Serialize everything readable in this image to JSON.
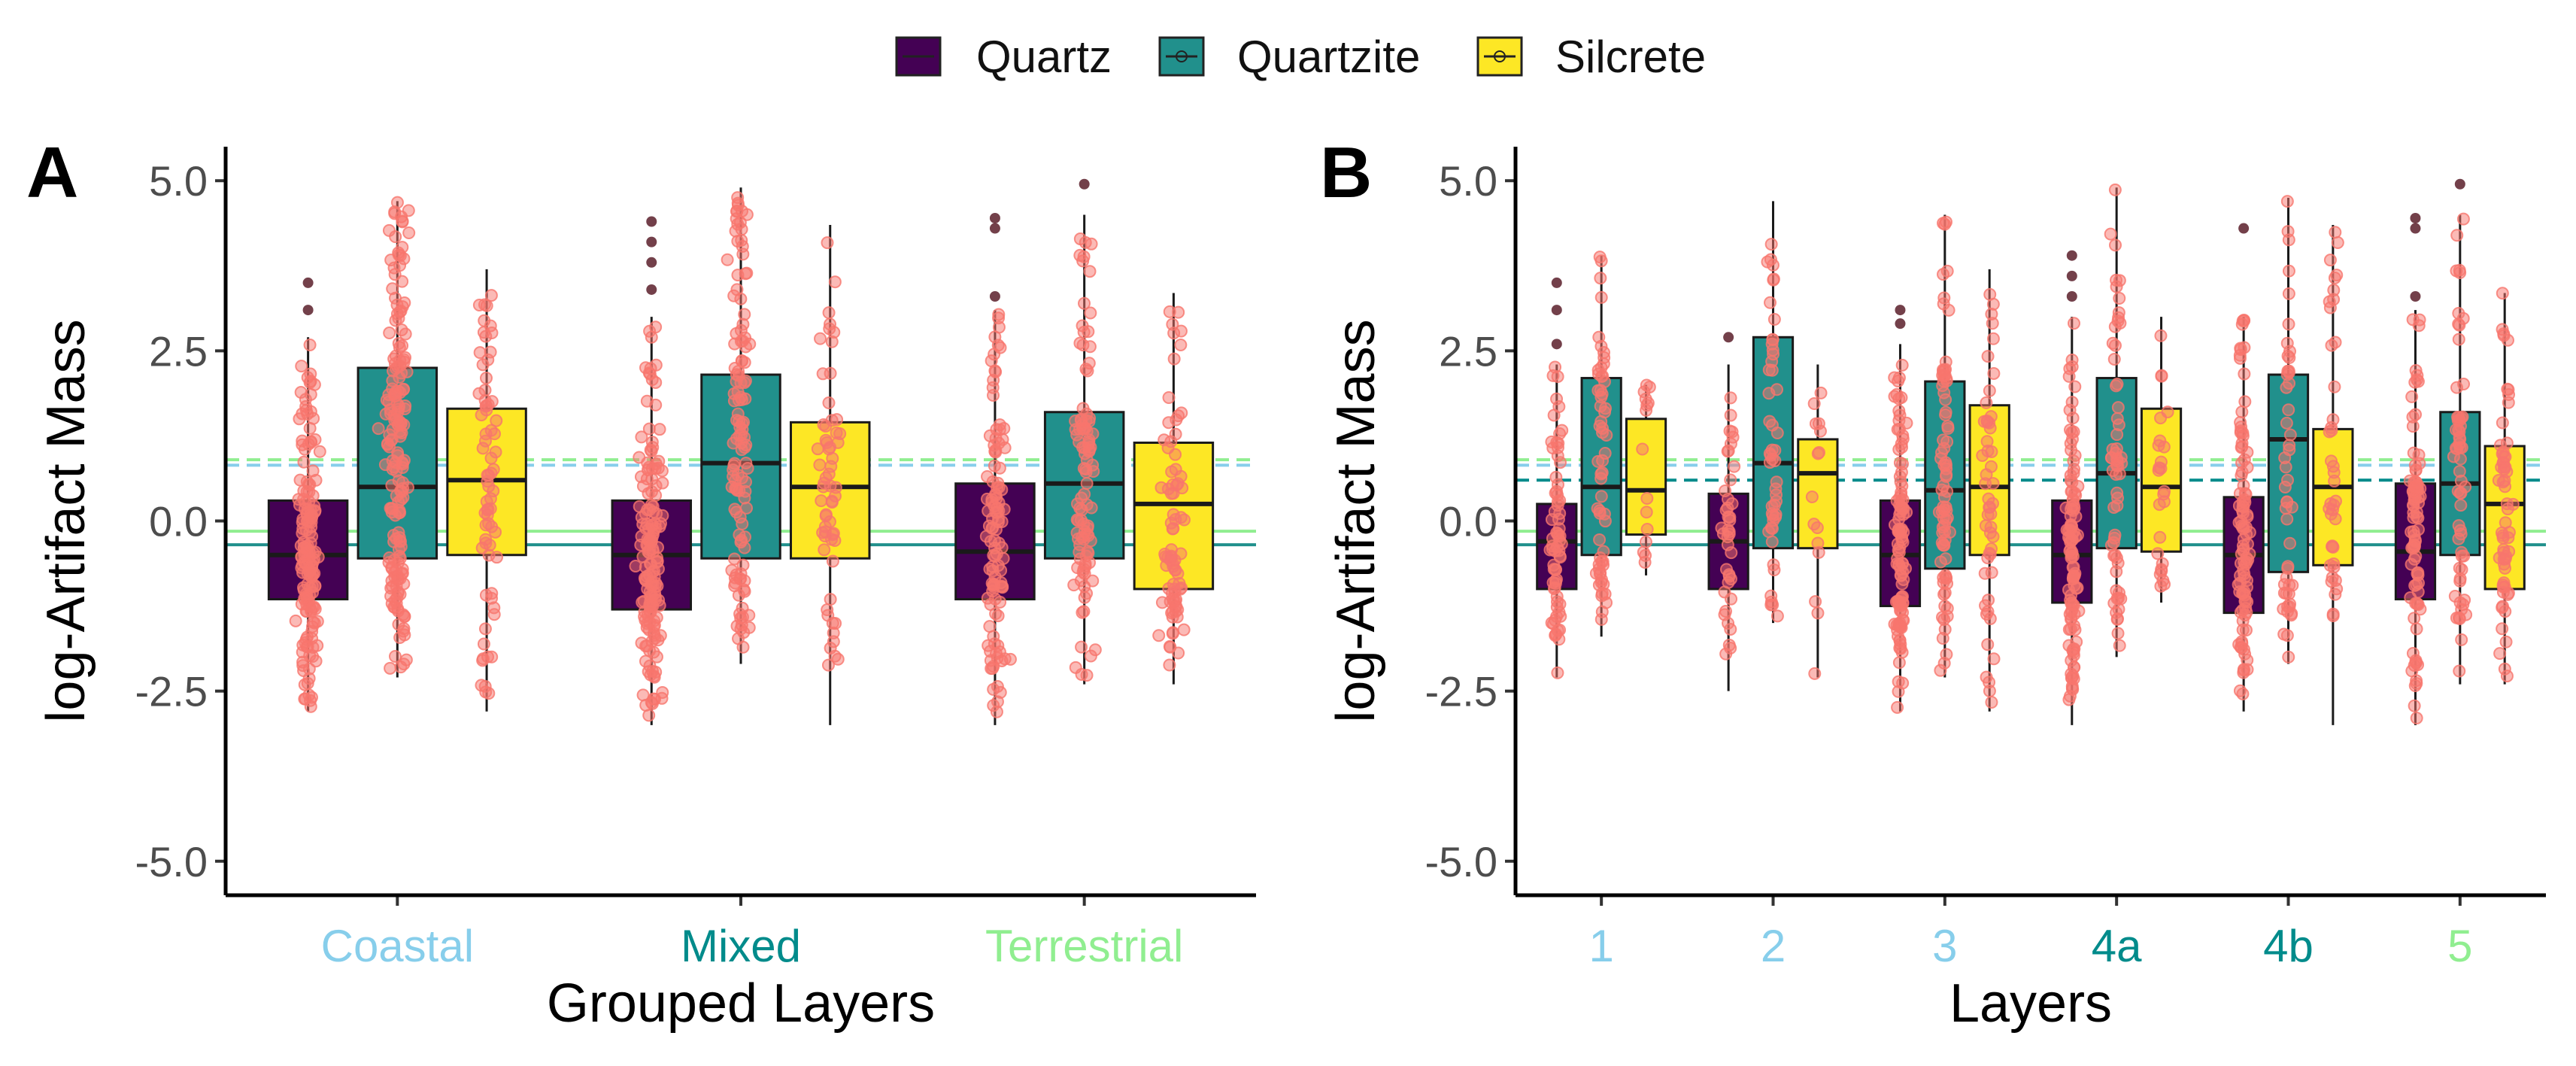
{
  "legend": {
    "items": [
      {
        "label": "Quartz",
        "color": "#440154"
      },
      {
        "label": "Quartzite",
        "color": "#21908C"
      },
      {
        "label": "Silcrete",
        "color": "#FDE725"
      }
    ]
  },
  "point_color": "#F8766D",
  "chart_data": [
    {
      "type": "box",
      "panel_label": "A",
      "xlabel": "Grouped Layers",
      "ylabel": "log-Artifact Mass",
      "ylim": [
        -5.5,
        5.5
      ],
      "yticks": [
        "5.0",
        "2.5",
        "0.0",
        "-2.5",
        "-5.0"
      ],
      "ytick_values": [
        5.0,
        2.5,
        0.0,
        -2.5,
        -5.0
      ],
      "categories": [
        "Coastal",
        "Mixed",
        "Terrestrial"
      ],
      "category_colors": [
        "#87CEEB",
        "#008B8B",
        "#90EE90"
      ],
      "series": [
        {
          "name": "Quartz",
          "color": "#440154",
          "boxes": [
            {
              "q1": -1.15,
              "median": -0.5,
              "q3": 0.3,
              "lo": -2.8,
              "hi": 2.7,
              "n": 160,
              "outliers": [
                3.1,
                3.5
              ]
            },
            {
              "q1": -1.3,
              "median": -0.5,
              "q3": 0.3,
              "lo": -3.0,
              "hi": 3.0,
              "n": 160,
              "outliers": [
                3.4,
                3.8,
                4.1,
                4.4
              ]
            },
            {
              "q1": -1.15,
              "median": -0.45,
              "q3": 0.55,
              "lo": -3.0,
              "hi": 3.1,
              "n": 110,
              "outliers": [
                3.3,
                4.3,
                4.45
              ]
            }
          ]
        },
        {
          "name": "Quartzite",
          "color": "#21908C",
          "boxes": [
            {
              "q1": -0.55,
              "median": 0.5,
              "q3": 2.25,
              "lo": -2.3,
              "hi": 4.7,
              "n": 180,
              "outliers": []
            },
            {
              "q1": -0.55,
              "median": 0.85,
              "q3": 2.15,
              "lo": -2.1,
              "hi": 4.9,
              "n": 120,
              "outliers": []
            },
            {
              "q1": -0.55,
              "median": 0.55,
              "q3": 1.6,
              "lo": -2.4,
              "hi": 4.5,
              "n": 100,
              "outliers": [
                4.95
              ]
            }
          ]
        },
        {
          "name": "Silcrete",
          "color": "#FDE725",
          "boxes": [
            {
              "q1": -0.5,
              "median": 0.6,
              "q3": 1.65,
              "lo": -2.8,
              "hi": 3.7,
              "n": 70,
              "outliers": []
            },
            {
              "q1": -0.55,
              "median": 0.5,
              "q3": 1.45,
              "lo": -3.0,
              "hi": 4.35,
              "n": 60,
              "outliers": []
            },
            {
              "q1": -1.0,
              "median": 0.25,
              "q3": 1.15,
              "lo": -2.4,
              "hi": 3.35,
              "n": 80,
              "outliers": []
            }
          ]
        }
      ],
      "hlines": [
        {
          "y": 0.9,
          "color": "#90EE90",
          "dash": true
        },
        {
          "y": 0.82,
          "color": "#87CEEB",
          "dash": true
        },
        {
          "y": -0.15,
          "color": "#90EE90",
          "dash": false
        },
        {
          "y": -0.35,
          "color": "#21908C",
          "dash": false
        }
      ]
    },
    {
      "type": "box",
      "panel_label": "B",
      "xlabel": "Layers",
      "ylabel": "log-Artifact Mass",
      "ylim": [
        -5.5,
        5.5
      ],
      "yticks": [
        "5.0",
        "2.5",
        "0.0",
        "-2.5",
        "-5.0"
      ],
      "ytick_values": [
        5.0,
        2.5,
        0.0,
        -2.5,
        -5.0
      ],
      "categories": [
        "1",
        "2",
        "3",
        "4a",
        "4b",
        "5"
      ],
      "category_colors": [
        "#87CEEB",
        "#87CEEB",
        "#87CEEB",
        "#008B8B",
        "#008B8B",
        "#90EE90"
      ],
      "series": [
        {
          "name": "Quartz",
          "color": "#440154",
          "boxes": [
            {
              "q1": -1.0,
              "median": -0.3,
              "q3": 0.25,
              "lo": -2.3,
              "hi": 2.3,
              "n": 70,
              "outliers": [
                2.6,
                3.1,
                3.5
              ]
            },
            {
              "q1": -1.0,
              "median": -0.3,
              "q3": 0.4,
              "lo": -2.5,
              "hi": 2.3,
              "n": 40,
              "outliers": [
                2.7
              ]
            },
            {
              "q1": -1.25,
              "median": -0.5,
              "q3": 0.3,
              "lo": -2.8,
              "hi": 2.6,
              "n": 110,
              "outliers": [
                2.9,
                3.1
              ]
            },
            {
              "q1": -1.2,
              "median": -0.5,
              "q3": 0.3,
              "lo": -3.0,
              "hi": 3.0,
              "n": 110,
              "outliers": [
                3.3,
                3.6,
                3.9
              ]
            },
            {
              "q1": -1.35,
              "median": -0.5,
              "q3": 0.35,
              "lo": -2.8,
              "hi": 3.0,
              "n": 100,
              "outliers": [
                4.3
              ]
            },
            {
              "q1": -1.15,
              "median": -0.45,
              "q3": 0.55,
              "lo": -3.0,
              "hi": 3.1,
              "n": 90,
              "outliers": [
                3.3,
                4.3,
                4.45
              ]
            }
          ]
        },
        {
          "name": "Quartzite",
          "color": "#21908C",
          "boxes": [
            {
              "q1": -0.5,
              "median": 0.5,
              "q3": 2.1,
              "lo": -1.7,
              "hi": 3.9,
              "n": 60,
              "outliers": []
            },
            {
              "q1": -0.4,
              "median": 0.85,
              "q3": 2.7,
              "lo": -1.5,
              "hi": 4.7,
              "n": 50,
              "outliers": []
            },
            {
              "q1": -0.7,
              "median": 0.45,
              "q3": 2.05,
              "lo": -2.3,
              "hi": 4.5,
              "n": 80,
              "outliers": []
            },
            {
              "q1": -0.4,
              "median": 0.7,
              "q3": 2.1,
              "lo": -2.0,
              "hi": 4.9,
              "n": 60,
              "outliers": []
            },
            {
              "q1": -0.75,
              "median": 1.2,
              "q3": 2.15,
              "lo": -2.1,
              "hi": 4.75,
              "n": 50,
              "outliers": []
            },
            {
              "q1": -0.5,
              "median": 0.55,
              "q3": 1.6,
              "lo": -2.4,
              "hi": 4.5,
              "n": 60,
              "outliers": [
                4.95
              ]
            }
          ]
        },
        {
          "name": "Silcrete",
          "color": "#FDE725",
          "boxes": [
            {
              "q1": -0.2,
              "median": 0.45,
              "q3": 1.5,
              "lo": -0.8,
              "hi": 2.0,
              "n": 15,
              "outliers": []
            },
            {
              "q1": -0.4,
              "median": 0.7,
              "q3": 1.2,
              "lo": -2.3,
              "hi": 2.3,
              "n": 15,
              "outliers": []
            },
            {
              "q1": -0.5,
              "median": 0.5,
              "q3": 1.7,
              "lo": -2.8,
              "hi": 3.7,
              "n": 50,
              "outliers": []
            },
            {
              "q1": -0.45,
              "median": 0.5,
              "q3": 1.65,
              "lo": -1.2,
              "hi": 3.0,
              "n": 25,
              "outliers": []
            },
            {
              "q1": -0.65,
              "median": 0.5,
              "q3": 1.35,
              "lo": -3.0,
              "hi": 4.35,
              "n": 40,
              "outliers": []
            },
            {
              "q1": -1.0,
              "median": 0.25,
              "q3": 1.1,
              "lo": -2.4,
              "hi": 3.35,
              "n": 60,
              "outliers": []
            }
          ]
        }
      ],
      "hlines": [
        {
          "y": 0.9,
          "color": "#90EE90",
          "dash": true
        },
        {
          "y": 0.82,
          "color": "#87CEEB",
          "dash": true
        },
        {
          "y": 0.6,
          "color": "#008B8B",
          "dash": true
        },
        {
          "y": -0.15,
          "color": "#90EE90",
          "dash": false
        },
        {
          "y": -0.35,
          "color": "#21908C",
          "dash": false
        }
      ]
    }
  ]
}
